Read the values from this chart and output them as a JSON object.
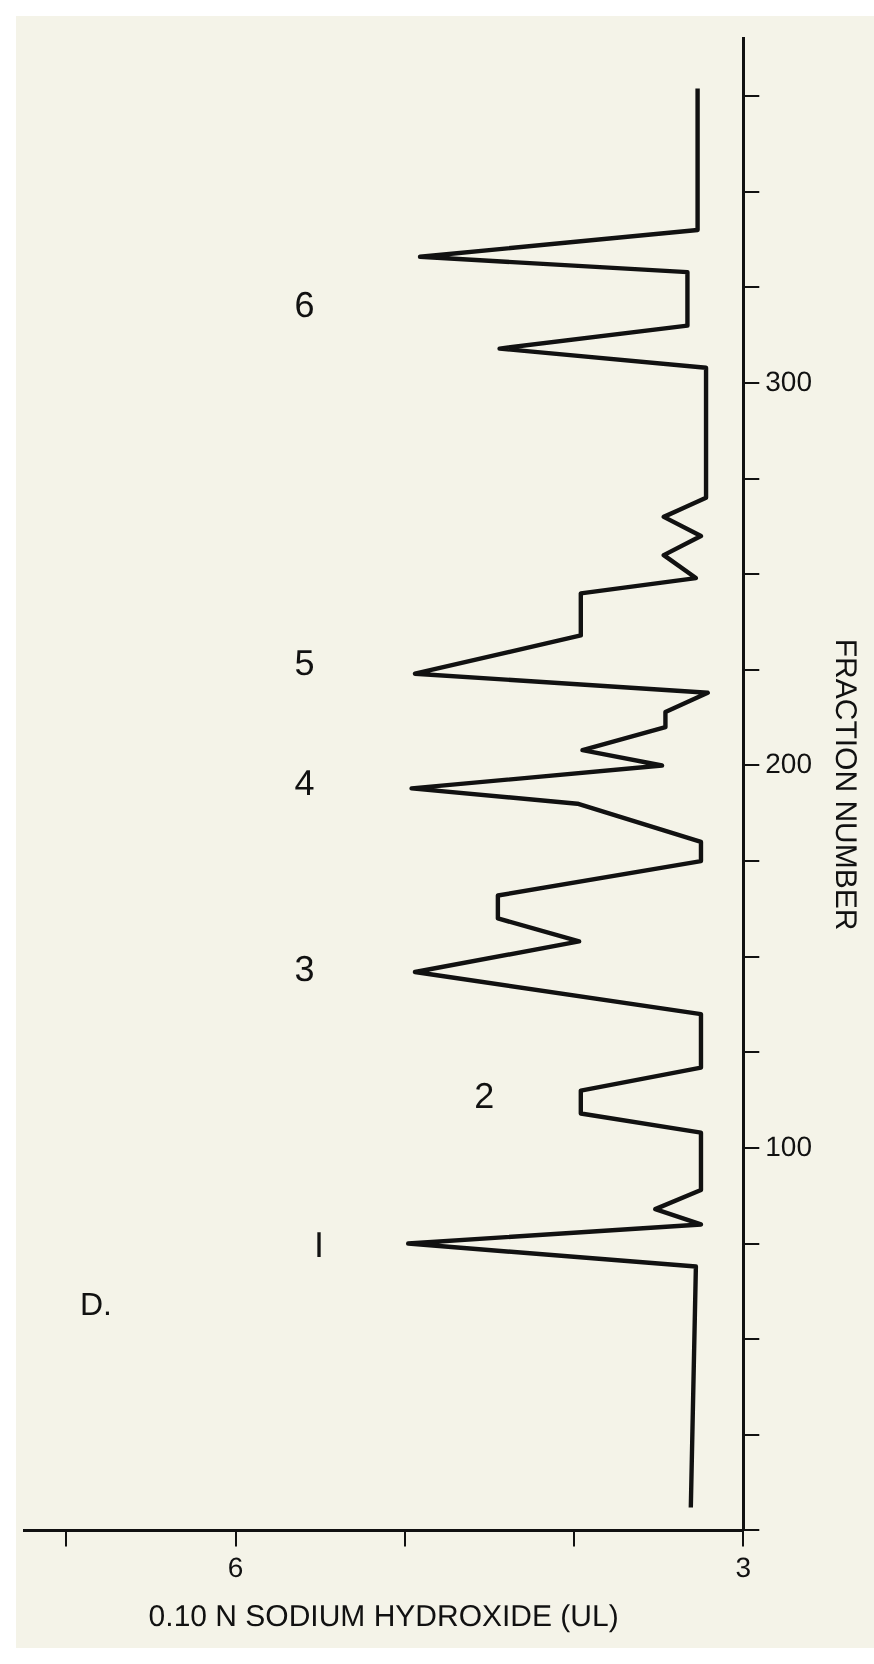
{
  "chart_data": {
    "type": "line",
    "xlabel": "0.10 N SODIUM HYDROXIDE (UL)",
    "ylabel": "FRACTION NUMBER",
    "series": [
      {
        "color": "#111111",
        "x": [
          3.31,
          3.28,
          4.98,
          3.25,
          3.52,
          3.25,
          3.25,
          3.96,
          3.96,
          3.25,
          3.25,
          4.94,
          3.97,
          4.45,
          4.45,
          3.25,
          3.25,
          3.98,
          4.96,
          3.48,
          3.95,
          3.46,
          3.46,
          3.21,
          4.94,
          3.96,
          3.96,
          3.28,
          3.47,
          3.25,
          3.47,
          3.22,
          3.22,
          4.44,
          3.33,
          3.33,
          4.91,
          3.27,
          3.27
        ],
        "values": [
          6,
          69,
          75,
          80,
          84,
          89,
          104,
          109,
          115,
          121,
          135,
          146,
          154,
          160,
          166,
          175,
          180,
          190,
          194,
          200,
          204,
          210,
          214,
          219,
          224,
          234,
          245,
          249,
          255,
          260,
          265,
          270,
          304,
          309,
          315,
          329,
          333,
          340,
          377
        ]
      }
    ],
    "xlim": [
      7.25,
      3
    ],
    "xticks": [
      {
        "value": 7,
        "label": null
      },
      6,
      {
        "value": 5,
        "label": null
      },
      {
        "value": 4,
        "label": null
      },
      3
    ],
    "ylim": [
      0,
      390
    ],
    "yticks": [
      {
        "value": 0,
        "label": null
      },
      {
        "value": 25,
        "label": null
      },
      {
        "value": 50,
        "label": null
      },
      {
        "value": 75,
        "label": null
      },
      100,
      {
        "value": 125,
        "label": null
      },
      {
        "value": 150,
        "label": null
      },
      {
        "value": 175,
        "label": null
      },
      200,
      {
        "value": 225,
        "label": null
      },
      {
        "value": 250,
        "label": null
      },
      {
        "value": 275,
        "label": null
      },
      300,
      {
        "value": 325,
        "label": null
      },
      {
        "value": 350,
        "label": null
      },
      {
        "value": 375,
        "label": null
      }
    ],
    "grid": false,
    "legend": false,
    "marker": "none",
    "line_style": "solid",
    "annotations": [
      "D.",
      "I",
      "2",
      "3",
      "4",
      "5",
      "6"
    ]
  }
}
